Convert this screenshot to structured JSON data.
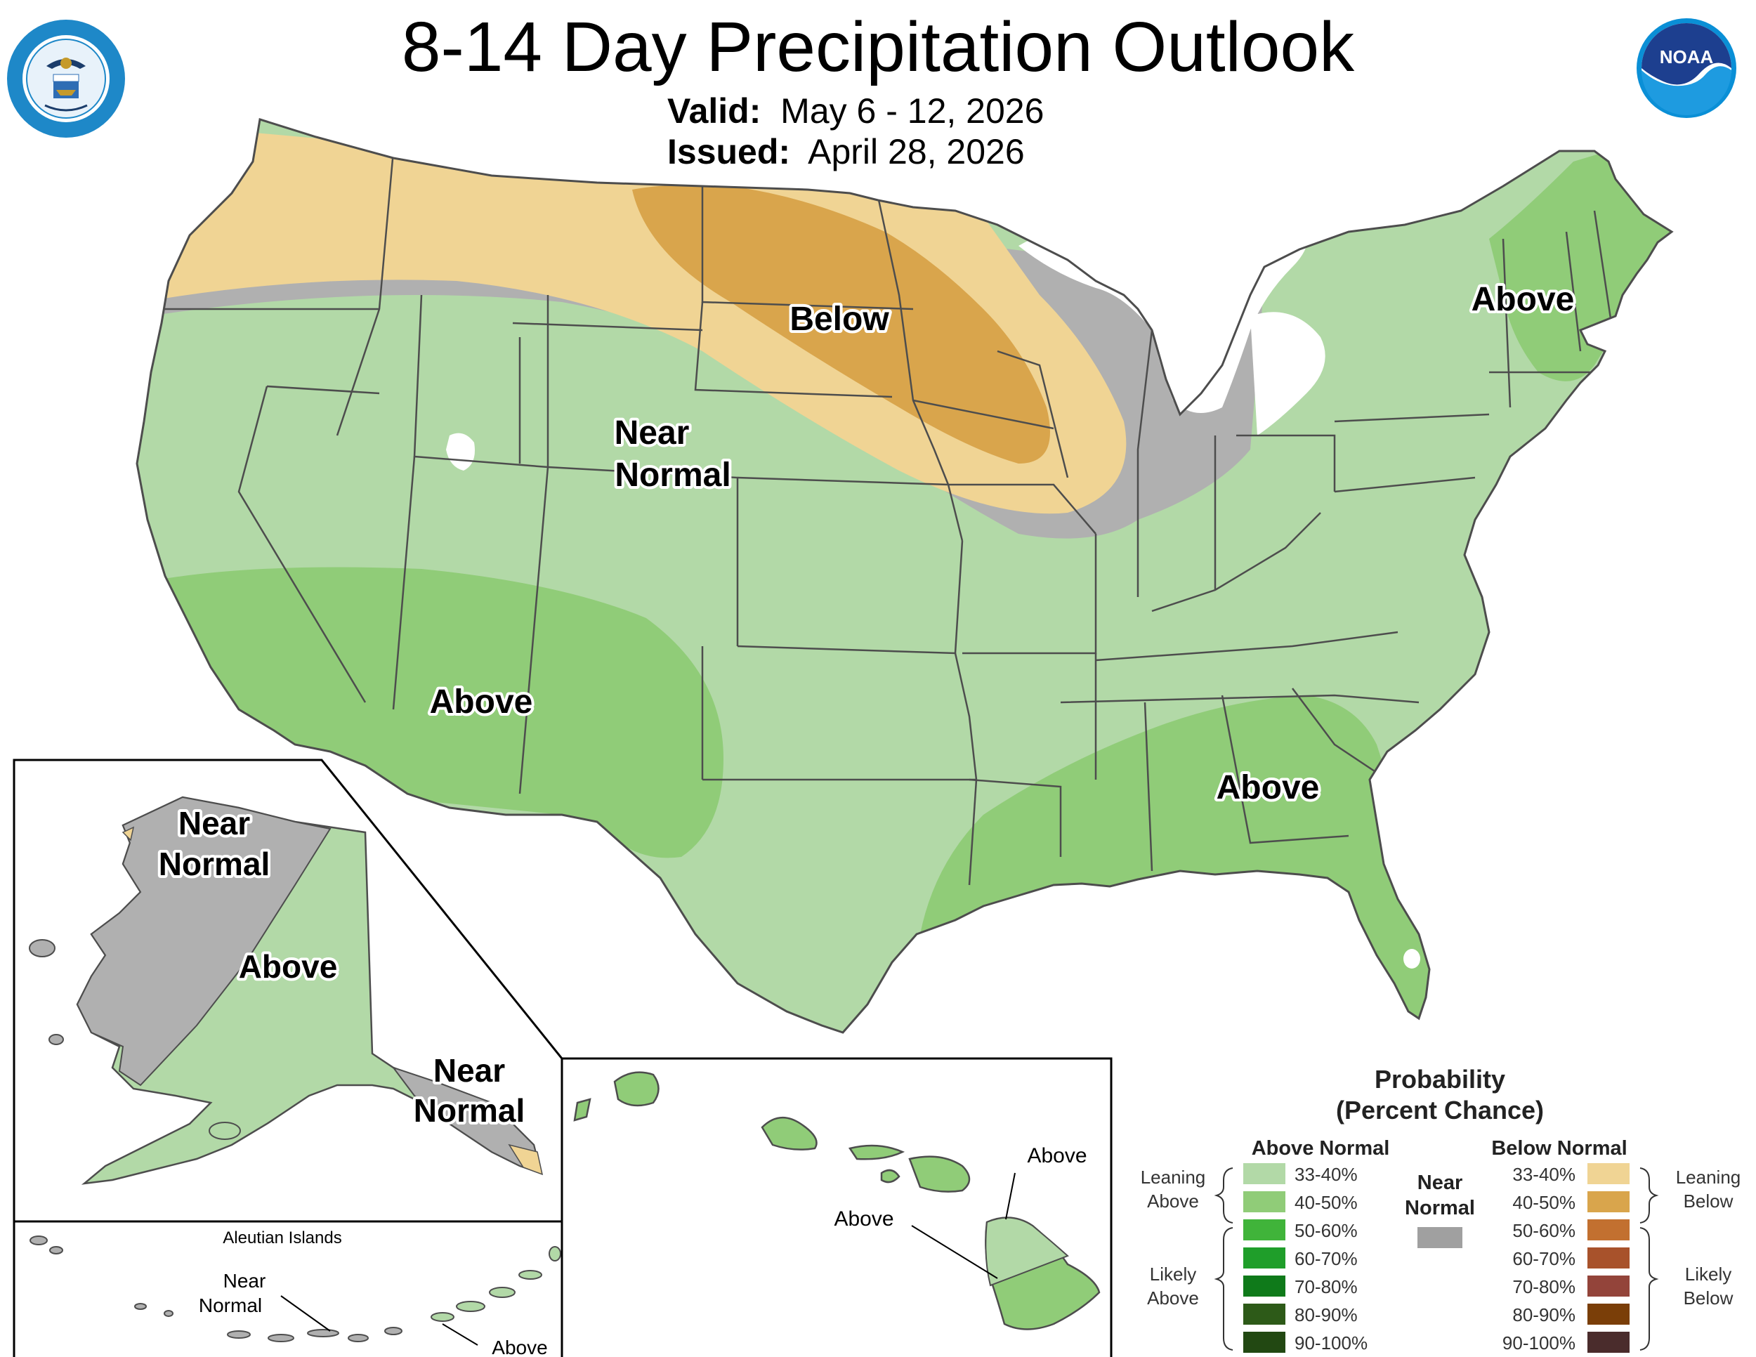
{
  "title": "8-14 Day Precipitation Outlook",
  "valid_label": "Valid:",
  "valid_value": "May 6 - 12, 2026",
  "issued_label": "Issued:",
  "issued_value": "April 28, 2026",
  "logos": {
    "left": "department-of-commerce-seal",
    "right": "noaa-logo",
    "noaa_text": "NOAA"
  },
  "colors": {
    "lean_above": "#b2d9a7",
    "above_40_50": "#90cc78",
    "above_50_60": "#40b43a",
    "above_60_70": "#1f9e2a",
    "above_70_80": "#0f7a1a",
    "above_80_90": "#2d5a18",
    "above_90_100": "#224812",
    "near_normal": "#b0b0b0",
    "near_normal_key": "#a0a0a0",
    "lean_below": "#f0d494",
    "below_40_50": "#d9a54c",
    "below_50_60": "#c27030",
    "below_60_70": "#a8522b",
    "below_70_80": "#93443a",
    "below_80_90": "#7a3e08",
    "below_90_100": "#4a2c2c",
    "state_lines": "#4d4d4d",
    "water": "#ffffff"
  },
  "map_labels": {
    "conus_below": "Below",
    "conus_near_1": "Near",
    "conus_near_2": "Normal",
    "conus_above_ne": "Above",
    "conus_above_sw": "Above",
    "conus_above_se": "Above",
    "ak_near_1": "Near",
    "ak_near_2": "Normal",
    "ak_above": "Above",
    "ak_se_near_1": "Near",
    "ak_se_near_2": "Normal",
    "aleutian_title": "Aleutian Islands",
    "aleutian_near_1": "Near",
    "aleutian_near_2": "Normal",
    "aleutian_above": "Above",
    "hi_above_1": "Above",
    "hi_above_2": "Above"
  },
  "legend": {
    "title_1": "Probability",
    "title_2": "(Percent Chance)",
    "above_header": "Above Normal",
    "below_header": "Below Normal",
    "near_1": "Near",
    "near_2": "Normal",
    "leaning_above_1": "Leaning",
    "leaning_above_2": "Above",
    "likely_above_1": "Likely",
    "likely_above_2": "Above",
    "leaning_below_1": "Leaning",
    "leaning_below_2": "Below",
    "likely_below_1": "Likely",
    "likely_below_2": "Below",
    "above_ranges": [
      "33-40%",
      "40-50%",
      "50-60%",
      "60-70%",
      "70-80%",
      "80-90%",
      "90-100%"
    ],
    "below_ranges": [
      "33-40%",
      "40-50%",
      "50-60%",
      "60-70%",
      "70-80%",
      "80-90%",
      "90-100%"
    ]
  }
}
